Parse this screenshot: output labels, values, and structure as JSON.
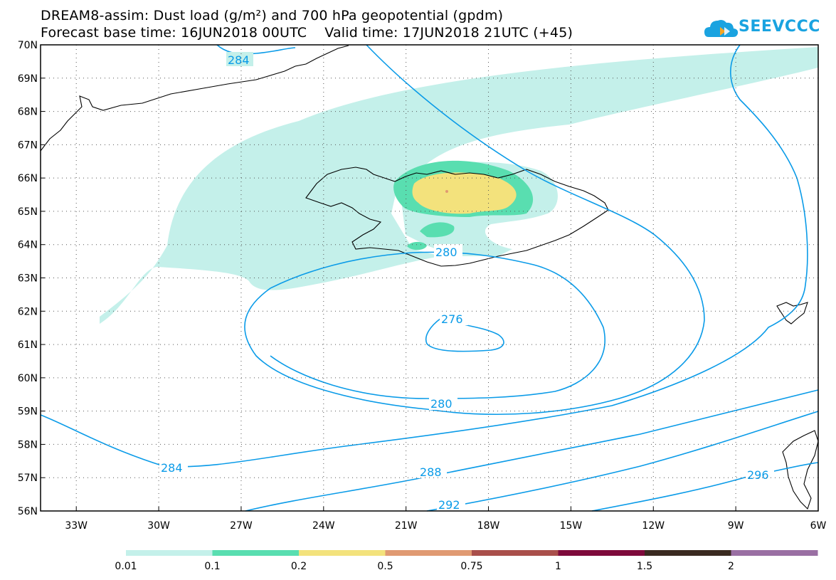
{
  "title": {
    "line1": "DREAM8-assim: Dust load (g/m²) and 700 hPa geopotential (gpdm)",
    "line2": "Forecast base time: 16JUN2018 00UTC    Valid time: 17JUN2018 21UTC (+45)"
  },
  "logo": {
    "text": "SEEVCCC",
    "color": "#1aa3e0",
    "icon": "cloud-icon"
  },
  "map": {
    "lat_labels": [
      "70N",
      "69N",
      "68N",
      "67N",
      "66N",
      "65N",
      "64N",
      "63N",
      "62N",
      "61N",
      "60N",
      "59N",
      "58N",
      "57N",
      "56N"
    ],
    "lon_labels": [
      "33W",
      "30W",
      "27W",
      "24W",
      "21W",
      "18W",
      "15W",
      "12W",
      "9W",
      "6W"
    ],
    "contour_labels": [
      "284",
      "280",
      "276",
      "280",
      "284",
      "288",
      "292",
      "296"
    ],
    "contour_color": "#0a9be8"
  },
  "colorbar": {
    "levels": [
      "0.01",
      "0.1",
      "0.2",
      "0.5",
      "0.75",
      "1",
      "1.5",
      "2"
    ],
    "colors": [
      "#c4f0ea",
      "#59deb0",
      "#f3e27c",
      "#e09a72",
      "#a94f4b",
      "#7e0a3b",
      "#3a2a20",
      "#9a6fa3"
    ]
  }
}
